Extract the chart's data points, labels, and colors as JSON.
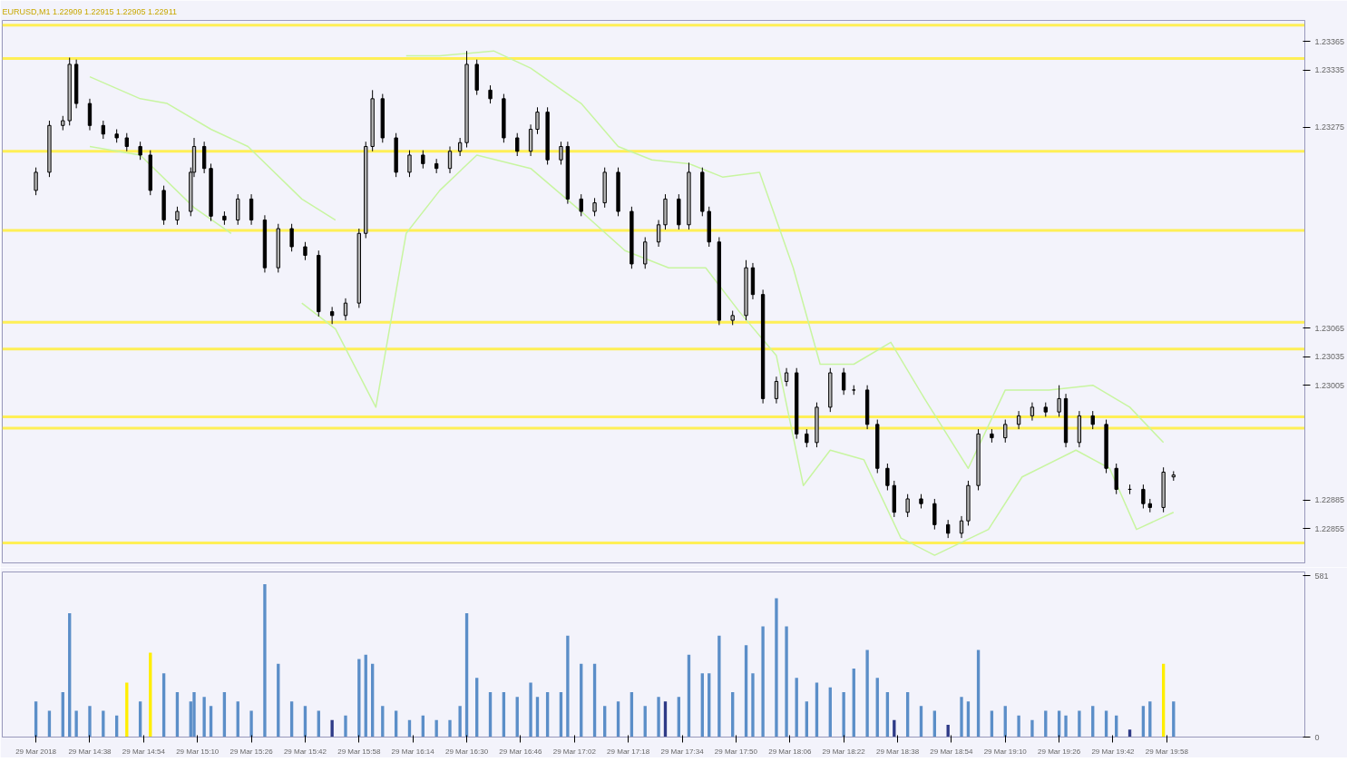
{
  "chart_data": [
    {
      "type": "candlestick",
      "title": "EURUSD,M1  1.22909 1.22915 1.22905 1.22911",
      "x": [
        "2018-03-29T14:22",
        "2018-03-29T14:26",
        "2018-03-29T14:30",
        "2018-03-29T14:32",
        "2018-03-29T14:34",
        "2018-03-29T14:38",
        "2018-03-29T14:42",
        "2018-03-29T14:46",
        "2018-03-29T14:49",
        "2018-03-29T14:53",
        "2018-03-29T14:56",
        "2018-03-29T15:00",
        "2018-03-29T15:04",
        "2018-03-29T15:08",
        "2018-03-29T15:09",
        "2018-03-29T15:12",
        "2018-03-29T15:14",
        "2018-03-29T15:18",
        "2018-03-29T15:22",
        "2018-03-29T15:26",
        "2018-03-29T15:30",
        "2018-03-29T15:34",
        "2018-03-29T15:38",
        "2018-03-29T15:42",
        "2018-03-29T15:46",
        "2018-03-29T15:50",
        "2018-03-29T15:54",
        "2018-03-29T15:58",
        "2018-03-29T16:00",
        "2018-03-29T16:02",
        "2018-03-29T16:05",
        "2018-03-29T16:09",
        "2018-03-29T16:13",
        "2018-03-29T16:17",
        "2018-03-29T16:21",
        "2018-03-29T16:25",
        "2018-03-29T16:28",
        "2018-03-29T16:30",
        "2018-03-29T16:33",
        "2018-03-29T16:37",
        "2018-03-29T16:41",
        "2018-03-29T16:45",
        "2018-03-29T16:49",
        "2018-03-29T16:51",
        "2018-03-29T16:54",
        "2018-03-29T16:58",
        "2018-03-29T17:00",
        "2018-03-29T17:04",
        "2018-03-29T17:08",
        "2018-03-29T17:11",
        "2018-03-29T17:15",
        "2018-03-29T17:19",
        "2018-03-29T17:23",
        "2018-03-29T17:27",
        "2018-03-29T17:29",
        "2018-03-29T17:33",
        "2018-03-29T17:36",
        "2018-03-29T17:40",
        "2018-03-29T17:42",
        "2018-03-29T17:45",
        "2018-03-29T17:49",
        "2018-03-29T17:53",
        "2018-03-29T17:55",
        "2018-03-29T17:58",
        "2018-03-29T18:02",
        "2018-03-29T18:05",
        "2018-03-29T18:08",
        "2018-03-29T18:11",
        "2018-03-29T18:14",
        "2018-03-29T18:18",
        "2018-03-29T18:22",
        "2018-03-29T18:25",
        "2018-03-29T18:29",
        "2018-03-29T18:32",
        "2018-03-29T18:35",
        "2018-03-29T18:37",
        "2018-03-29T18:41",
        "2018-03-29T18:45",
        "2018-03-29T18:49",
        "2018-03-29T18:53",
        "2018-03-29T18:57",
        "2018-03-29T18:59",
        "2018-03-29T19:02",
        "2018-03-29T19:06",
        "2018-03-29T19:10",
        "2018-03-29T19:14",
        "2018-03-29T19:18",
        "2018-03-29T19:22",
        "2018-03-29T19:26",
        "2018-03-29T19:28",
        "2018-03-29T19:32",
        "2018-03-29T19:36",
        "2018-03-29T19:40",
        "2018-03-29T19:43",
        "2018-03-29T19:47",
        "2018-03-29T19:51",
        "2018-03-29T19:53",
        "2018-03-29T19:57",
        "2018-03-29T20:00"
      ],
      "ohlc": [
        [
          1.23209,
          1.23233,
          1.23204,
          1.23228
        ],
        [
          1.23228,
          1.23282,
          1.23223,
          1.23277
        ],
        [
          1.23277,
          1.23287,
          1.23272,
          1.23282
        ],
        [
          1.23282,
          1.23348,
          1.23277,
          1.23341
        ],
        [
          1.23341,
          1.23346,
          1.23295,
          1.233
        ],
        [
          1.233,
          1.23305,
          1.23272,
          1.23277
        ],
        [
          1.23277,
          1.23282,
          1.23263,
          1.23268
        ],
        [
          1.23268,
          1.23273,
          1.23259,
          1.23264
        ],
        [
          1.23264,
          1.23269,
          1.2325,
          1.23255
        ],
        [
          1.23255,
          1.2326,
          1.23241,
          1.23246
        ],
        [
          1.23246,
          1.23251,
          1.23204,
          1.23209
        ],
        [
          1.23209,
          1.23214,
          1.23173,
          1.23178
        ],
        [
          1.23178,
          1.23192,
          1.23173,
          1.23187
        ],
        [
          1.23187,
          1.23233,
          1.23182,
          1.23228
        ],
        [
          1.23228,
          1.23264,
          1.23223,
          1.23255
        ],
        [
          1.23255,
          1.2326,
          1.23227,
          1.23232
        ],
        [
          1.23232,
          1.23237,
          1.23177,
          1.23182
        ],
        [
          1.23182,
          1.23187,
          1.23173,
          1.23178
        ],
        [
          1.23178,
          1.23205,
          1.23173,
          1.232
        ],
        [
          1.232,
          1.23205,
          1.23173,
          1.23178
        ],
        [
          1.23178,
          1.23183,
          1.23123,
          1.23128
        ],
        [
          1.23128,
          1.23174,
          1.23123,
          1.23169
        ],
        [
          1.23169,
          1.23174,
          1.23145,
          1.2315
        ],
        [
          1.2315,
          1.23155,
          1.23136,
          1.23141
        ],
        [
          1.23141,
          1.23146,
          1.23077,
          1.23082
        ],
        [
          1.23082,
          1.23087,
          1.23069,
          1.23078
        ],
        [
          1.23078,
          1.23096,
          1.23073,
          1.23091
        ],
        [
          1.23091,
          1.23169,
          1.23086,
          1.23164
        ],
        [
          1.23164,
          1.2326,
          1.23159,
          1.23255
        ],
        [
          1.23255,
          1.23314,
          1.2325,
          1.23305
        ],
        [
          1.23305,
          1.2331,
          1.23259,
          1.23264
        ],
        [
          1.23264,
          1.23269,
          1.23223,
          1.23228
        ],
        [
          1.23228,
          1.23251,
          1.23223,
          1.23246
        ],
        [
          1.23246,
          1.23251,
          1.23232,
          1.23237
        ],
        [
          1.23237,
          1.23242,
          1.23227,
          1.23232
        ],
        [
          1.23232,
          1.23255,
          1.23227,
          1.2325
        ],
        [
          1.2325,
          1.23264,
          1.23245,
          1.23259
        ],
        [
          1.23259,
          1.23355,
          1.23254,
          1.23341
        ],
        [
          1.23341,
          1.23346,
          1.23309,
          1.23314
        ],
        [
          1.23314,
          1.23319,
          1.233,
          1.23305
        ],
        [
          1.23305,
          1.2331,
          1.23259,
          1.23264
        ],
        [
          1.23264,
          1.23269,
          1.23245,
          1.2325
        ],
        [
          1.2325,
          1.23278,
          1.23245,
          1.23273
        ],
        [
          1.23273,
          1.23296,
          1.23268,
          1.23291
        ],
        [
          1.23291,
          1.23296,
          1.23236,
          1.23241
        ],
        [
          1.23241,
          1.2326,
          1.23236,
          1.23255
        ],
        [
          1.23255,
          1.2326,
          1.23195,
          1.232
        ],
        [
          1.232,
          1.23205,
          1.23182,
          1.23187
        ],
        [
          1.23187,
          1.23201,
          1.23182,
          1.23196
        ],
        [
          1.23196,
          1.23233,
          1.23191,
          1.23228
        ],
        [
          1.23228,
          1.23233,
          1.23182,
          1.23187
        ],
        [
          1.23187,
          1.23192,
          1.23127,
          1.23132
        ],
        [
          1.23132,
          1.2316,
          1.23127,
          1.23155
        ],
        [
          1.23155,
          1.23178,
          1.2315,
          1.23173
        ],
        [
          1.23173,
          1.23205,
          1.23168,
          1.232
        ],
        [
          1.232,
          1.23205,
          1.23168,
          1.23173
        ],
        [
          1.23173,
          1.23238,
          1.23168,
          1.23228
        ],
        [
          1.23228,
          1.23233,
          1.23182,
          1.23187
        ],
        [
          1.23187,
          1.23192,
          1.2315,
          1.23155
        ],
        [
          1.23155,
          1.2316,
          1.23068,
          1.23073
        ],
        [
          1.23073,
          1.23083,
          1.23068,
          1.23078
        ],
        [
          1.23078,
          1.23136,
          1.23073,
          1.23128
        ],
        [
          1.23128,
          1.23133,
          1.23095,
          1.231
        ],
        [
          1.231,
          1.23105,
          1.22986,
          1.22991
        ],
        [
          1.22991,
          1.23014,
          1.22986,
          1.23009
        ],
        [
          1.23009,
          1.23023,
          1.23004,
          1.23018
        ],
        [
          1.23018,
          1.23023,
          1.22949,
          1.22954
        ],
        [
          1.22954,
          1.22959,
          1.2294,
          1.22945
        ],
        [
          1.22945,
          1.22987,
          1.2294,
          1.22982
        ],
        [
          1.22982,
          1.23023,
          1.22977,
          1.23018
        ],
        [
          1.23018,
          1.23023,
          1.22995,
          1.23
        ],
        [
          1.23,
          1.23005,
          1.22995,
          1.23
        ],
        [
          1.23,
          1.23005,
          1.22959,
          1.22964
        ],
        [
          1.22964,
          1.22969,
          1.22913,
          1.22918
        ],
        [
          1.22918,
          1.22923,
          1.22895,
          1.229
        ],
        [
          1.229,
          1.22905,
          1.22867,
          1.22872
        ],
        [
          1.22872,
          1.22891,
          1.22867,
          1.22886
        ],
        [
          1.22886,
          1.22891,
          1.22876,
          1.22881
        ],
        [
          1.22881,
          1.22886,
          1.22854,
          1.22859
        ],
        [
          1.22859,
          1.22864,
          1.22845,
          1.2285
        ],
        [
          1.2285,
          1.22868,
          1.22845,
          1.22863
        ],
        [
          1.22863,
          1.22905,
          1.22858,
          1.229
        ],
        [
          1.229,
          1.22959,
          1.22895,
          1.22954
        ],
        [
          1.22954,
          1.22959,
          1.22945,
          1.2295
        ],
        [
          1.2295,
          1.22969,
          1.22945,
          1.22964
        ],
        [
          1.22964,
          1.22978,
          1.22959,
          1.22973
        ],
        [
          1.22973,
          1.22987,
          1.22968,
          1.22982
        ],
        [
          1.22982,
          1.22987,
          1.22972,
          1.22977
        ],
        [
          1.22977,
          1.23005,
          1.22972,
          1.22991
        ],
        [
          1.22991,
          1.22996,
          1.2294,
          1.22945
        ],
        [
          1.22945,
          1.22978,
          1.2294,
          1.22973
        ],
        [
          1.22973,
          1.22978,
          1.22959,
          1.22964
        ],
        [
          1.22964,
          1.22969,
          1.22913,
          1.22918
        ],
        [
          1.22918,
          1.22923,
          1.22891,
          1.22896
        ],
        [
          1.22896,
          1.22901,
          1.22891,
          1.22896
        ],
        [
          1.22896,
          1.22901,
          1.22876,
          1.22881
        ],
        [
          1.22881,
          1.22886,
          1.22872,
          1.22877
        ],
        [
          1.22877,
          1.22919,
          1.22872,
          1.22914
        ],
        [
          1.22909,
          1.22915,
          1.22905,
          1.22911
        ]
      ],
      "series": [
        {
          "type": "line",
          "color": "#c8f5a0",
          "x": [
            "2018-03-29T14:38",
            "2018-03-29T14:53",
            "2018-03-29T15:01",
            "2018-03-29T15:14",
            "2018-03-29T15:25",
            "2018-03-29T15:41",
            "2018-03-29T15:51",
            "2018-03-29T16:01",
            "2018-03-29T16:12",
            "2018-03-29T16:22",
            "2018-03-29T16:38",
            "2018-03-29T16:49",
            "2018-03-29T17:04",
            "2018-03-29T17:15",
            "2018-03-29T17:25",
            "2018-03-29T17:36",
            "2018-03-29T17:46",
            "2018-03-29T17:57",
            "2018-03-29T18:07",
            "2018-03-29T18:15",
            "2018-03-29T18:25",
            "2018-03-29T18:36",
            "2018-03-29T18:46",
            "2018-03-29T18:59",
            "2018-03-29T19:10",
            "2018-03-29T19:23",
            "2018-03-29T19:36",
            "2018-03-29T19:47",
            "2018-03-29T19:57"
          ],
          "values": [
            1.23328,
            1.23305,
            1.233,
            1.23273,
            1.23255,
            1.232,
            1.23178,
            null,
            1.2335,
            1.2335,
            1.23355,
            1.23337,
            1.233,
            1.23255,
            1.23241,
            1.23237,
            1.23223,
            1.23228,
            1.23128,
            1.23027,
            1.23027,
            1.2305,
            1.22991,
            1.22918,
            1.23,
            1.23,
            1.23005,
            1.22982,
            1.22945
          ]
        },
        {
          "type": "line",
          "color": "#c8f5a0",
          "x": [
            "2018-03-29T14:38",
            "2018-03-29T14:53",
            "2018-03-29T15:09",
            "2018-03-29T15:20",
            "2018-03-29T15:30",
            "2018-03-29T15:41",
            "2018-03-29T15:51",
            "2018-03-29T16:03",
            "2018-03-29T16:12",
            "2018-03-29T16:22",
            "2018-03-29T16:33",
            "2018-03-29T16:49",
            "2018-03-29T17:04",
            "2018-03-29T17:17",
            "2018-03-29T17:30",
            "2018-03-29T17:41",
            "2018-03-29T17:51",
            "2018-03-29T18:02",
            "2018-03-29T18:10",
            "2018-03-29T18:18",
            "2018-03-29T18:28",
            "2018-03-29T18:39",
            "2018-03-29T18:49",
            "2018-03-29T19:05",
            "2018-03-29T19:15",
            "2018-03-29T19:31",
            "2018-03-29T19:41",
            "2018-03-29T19:49",
            "2018-03-29T20:00"
          ],
          "values": [
            1.23255,
            1.23246,
            1.23191,
            1.23164,
            null,
            1.23091,
            1.23064,
            1.22982,
            1.23164,
            1.23209,
            1.23246,
            1.23232,
            1.23187,
            1.23146,
            1.23128,
            1.23128,
            1.23082,
            1.23036,
            1.229,
            1.22937,
            1.22927,
            1.22845,
            1.22827,
            1.22854,
            1.22909,
            1.22937,
            1.22918,
            1.22854,
            1.22872
          ]
        }
      ],
      "ref_lines": [
        {
          "axis": "y",
          "value": 1.23382,
          "color": "#ffee44"
        },
        {
          "axis": "y",
          "value": 1.23347,
          "color": "#ffee44"
        },
        {
          "axis": "y",
          "value": 1.2325,
          "color": "#ffee44"
        },
        {
          "axis": "y",
          "value": 1.23167,
          "color": "#ffee44"
        },
        {
          "axis": "y",
          "value": 1.23071,
          "color": "#ffee44"
        },
        {
          "axis": "y",
          "value": 1.23043,
          "color": "#ffee44"
        },
        {
          "axis": "y",
          "value": 1.22972,
          "color": "#ffee44"
        },
        {
          "axis": "y",
          "value": 1.2296,
          "color": "#ffee44"
        },
        {
          "axis": "y",
          "value": 1.2284,
          "color": "#ffee44"
        }
      ],
      "xlim": [
        "2018-03-29T14:12",
        "2018-03-29T20:39"
      ],
      "ylim": [
        1.22819,
        1.23387
      ],
      "yticks": [
        1.22855,
        1.22885,
        1.23005,
        1.23035,
        1.23065,
        1.23275,
        1.23335,
        1.23365
      ],
      "tick_labels": "y",
      "grid": false
    },
    {
      "type": "bar",
      "x": [
        "2018-03-29T14:22",
        "2018-03-29T14:26",
        "2018-03-29T14:30",
        "2018-03-29T14:32",
        "2018-03-29T14:34",
        "2018-03-29T14:38",
        "2018-03-29T14:42",
        "2018-03-29T14:46",
        "2018-03-29T14:49",
        "2018-03-29T14:53",
        "2018-03-29T14:56",
        "2018-03-29T15:00",
        "2018-03-29T15:04",
        "2018-03-29T15:08",
        "2018-03-29T15:09",
        "2018-03-29T15:12",
        "2018-03-29T15:14",
        "2018-03-29T15:18",
        "2018-03-29T15:22",
        "2018-03-29T15:26",
        "2018-03-29T15:30",
        "2018-03-29T15:34",
        "2018-03-29T15:38",
        "2018-03-29T15:42",
        "2018-03-29T15:46",
        "2018-03-29T15:50",
        "2018-03-29T15:54",
        "2018-03-29T15:58",
        "2018-03-29T16:00",
        "2018-03-29T16:02",
        "2018-03-29T16:05",
        "2018-03-29T16:09",
        "2018-03-29T16:13",
        "2018-03-29T16:17",
        "2018-03-29T16:21",
        "2018-03-29T16:25",
        "2018-03-29T16:28",
        "2018-03-29T16:30",
        "2018-03-29T16:33",
        "2018-03-29T16:37",
        "2018-03-29T16:41",
        "2018-03-29T16:45",
        "2018-03-29T16:49",
        "2018-03-29T16:51",
        "2018-03-29T16:54",
        "2018-03-29T16:58",
        "2018-03-29T17:00",
        "2018-03-29T17:04",
        "2018-03-29T17:08",
        "2018-03-29T17:11",
        "2018-03-29T17:15",
        "2018-03-29T17:19",
        "2018-03-29T17:23",
        "2018-03-29T17:27",
        "2018-03-29T17:29",
        "2018-03-29T17:33",
        "2018-03-29T17:36",
        "2018-03-29T17:40",
        "2018-03-29T17:42",
        "2018-03-29T17:45",
        "2018-03-29T17:49",
        "2018-03-29T17:53",
        "2018-03-29T17:55",
        "2018-03-29T17:58",
        "2018-03-29T18:02",
        "2018-03-29T18:05",
        "2018-03-29T18:08",
        "2018-03-29T18:11",
        "2018-03-29T18:14",
        "2018-03-29T18:18",
        "2018-03-29T18:22",
        "2018-03-29T18:25",
        "2018-03-29T18:29",
        "2018-03-29T18:32",
        "2018-03-29T18:35",
        "2018-03-29T18:37",
        "2018-03-29T18:41",
        "2018-03-29T18:45",
        "2018-03-29T18:49",
        "2018-03-29T18:53",
        "2018-03-29T18:57",
        "2018-03-29T18:59",
        "2018-03-29T19:02",
        "2018-03-29T19:06",
        "2018-03-29T19:10",
        "2018-03-29T19:14",
        "2018-03-29T19:18",
        "2018-03-29T19:22",
        "2018-03-29T19:26",
        "2018-03-29T19:28",
        "2018-03-29T19:32",
        "2018-03-29T19:36",
        "2018-03-29T19:40",
        "2018-03-29T19:43",
        "2018-03-29T19:47",
        "2018-03-29T19:51",
        "2018-03-29T19:53",
        "2018-03-29T19:57",
        "2018-03-29T20:00"
      ],
      "values": [
        128,
        95,
        162,
        446,
        95,
        112,
        95,
        78,
        196,
        128,
        304,
        230,
        162,
        128,
        162,
        145,
        112,
        162,
        128,
        95,
        551,
        264,
        128,
        112,
        95,
        61,
        78,
        281,
        297,
        264,
        112,
        95,
        61,
        78,
        61,
        61,
        112,
        446,
        213,
        162,
        162,
        145,
        196,
        145,
        162,
        162,
        365,
        264,
        264,
        112,
        128,
        162,
        112,
        145,
        128,
        145,
        297,
        230,
        230,
        365,
        162,
        331,
        230,
        399,
        500,
        399,
        213,
        128,
        196,
        179,
        162,
        247,
        314,
        213,
        162,
        61,
        162,
        112,
        95,
        44,
        145,
        128,
        314,
        95,
        112,
        78,
        61,
        95,
        95,
        78,
        95,
        112,
        95,
        78,
        27,
        112,
        128,
        264,
        128
      ],
      "colors": [
        "#5b8ec8",
        "#5b8ec8",
        "#5b8ec8",
        "#5b8ec8",
        "#5b8ec8",
        "#5b8ec8",
        "#5b8ec8",
        "#5b8ec8",
        "#ffee00",
        "#5b8ec8",
        "#ffee00",
        "#5b8ec8",
        "#5b8ec8",
        "#5b8ec8",
        "#5b8ec8",
        "#5b8ec8",
        "#5b8ec8",
        "#5b8ec8",
        "#5b8ec8",
        "#5b8ec8",
        "#5b8ec8",
        "#5b8ec8",
        "#5b8ec8",
        "#5b8ec8",
        "#5b8ec8",
        "#2e3a87",
        "#5b8ec8",
        "#5b8ec8",
        "#5b8ec8",
        "#5b8ec8",
        "#5b8ec8",
        "#5b8ec8",
        "#5b8ec8",
        "#5b8ec8",
        "#5b8ec8",
        "#5b8ec8",
        "#5b8ec8",
        "#5b8ec8",
        "#5b8ec8",
        "#5b8ec8",
        "#5b8ec8",
        "#5b8ec8",
        "#5b8ec8",
        "#5b8ec8",
        "#5b8ec8",
        "#5b8ec8",
        "#5b8ec8",
        "#5b8ec8",
        "#5b8ec8",
        "#5b8ec8",
        "#5b8ec8",
        "#5b8ec8",
        "#5b8ec8",
        "#5b8ec8",
        "#2e3a87",
        "#5b8ec8",
        "#5b8ec8",
        "#5b8ec8",
        "#5b8ec8",
        "#5b8ec8",
        "#5b8ec8",
        "#5b8ec8",
        "#5b8ec8",
        "#5b8ec8",
        "#5b8ec8",
        "#5b8ec8",
        "#5b8ec8",
        "#5b8ec8",
        "#5b8ec8",
        "#5b8ec8",
        "#5b8ec8",
        "#5b8ec8",
        "#5b8ec8",
        "#5b8ec8",
        "#5b8ec8",
        "#2e3a87",
        "#5b8ec8",
        "#5b8ec8",
        "#5b8ec8",
        "#2e3a87",
        "#5b8ec8",
        "#5b8ec8",
        "#5b8ec8",
        "#5b8ec8",
        "#5b8ec8",
        "#5b8ec8",
        "#5b8ec8",
        "#5b8ec8",
        "#5b8ec8",
        "#5b8ec8",
        "#5b8ec8",
        "#5b8ec8",
        "#5b8ec8",
        "#5b8ec8",
        "#2e3a87",
        "#5b8ec8",
        "#5b8ec8",
        "#ffee00",
        "#5b8ec8"
      ],
      "xlim": [
        "2018-03-29T14:12",
        "2018-03-29T20:39"
      ],
      "xticks": [
        {
          "value": "2018-03-29T14:22",
          "label": "29 Mar 2018"
        },
        {
          "value": "2018-03-29T14:38",
          "label": "29 Mar 14:38"
        },
        {
          "value": "2018-03-29T14:54",
          "label": "29 Mar 14:54"
        },
        {
          "value": "2018-03-29T15:10",
          "label": "29 Mar 15:10"
        },
        {
          "value": "2018-03-29T15:26",
          "label": "29 Mar 15:26"
        },
        {
          "value": "2018-03-29T15:42",
          "label": "29 Mar 15:42"
        },
        {
          "value": "2018-03-29T15:58",
          "label": "29 Mar 15:58"
        },
        {
          "value": "2018-03-29T16:14",
          "label": "29 Mar 16:14"
        },
        {
          "value": "2018-03-29T16:30",
          "label": "29 Mar 16:30"
        },
        {
          "value": "2018-03-29T16:46",
          "label": "29 Mar 16:46"
        },
        {
          "value": "2018-03-29T17:02",
          "label": "29 Mar 17:02"
        },
        {
          "value": "2018-03-29T17:18",
          "label": "29 Mar 17:18"
        },
        {
          "value": "2018-03-29T17:34",
          "label": "29 Mar 17:34"
        },
        {
          "value": "2018-03-29T17:50",
          "label": "29 Mar 17:50"
        },
        {
          "value": "2018-03-29T18:06",
          "label": "29 Mar 18:06"
        },
        {
          "value": "2018-03-29T18:22",
          "label": "29 Mar 18:22"
        },
        {
          "value": "2018-03-29T18:38",
          "label": "29 Mar 18:38"
        },
        {
          "value": "2018-03-29T18:54",
          "label": "29 Mar 18:54"
        },
        {
          "value": "2018-03-29T19:10",
          "label": "29 Mar 19:10"
        },
        {
          "value": "2018-03-29T19:26",
          "label": "29 Mar 19:26"
        },
        {
          "value": "2018-03-29T19:42",
          "label": "29 Mar 19:42"
        },
        {
          "value": "2018-03-29T19:58",
          "label": "29 Mar 19:58"
        }
      ],
      "ylim": [
        0,
        595
      ],
      "yticks": [
        0,
        581
      ],
      "grid": false
    }
  ]
}
